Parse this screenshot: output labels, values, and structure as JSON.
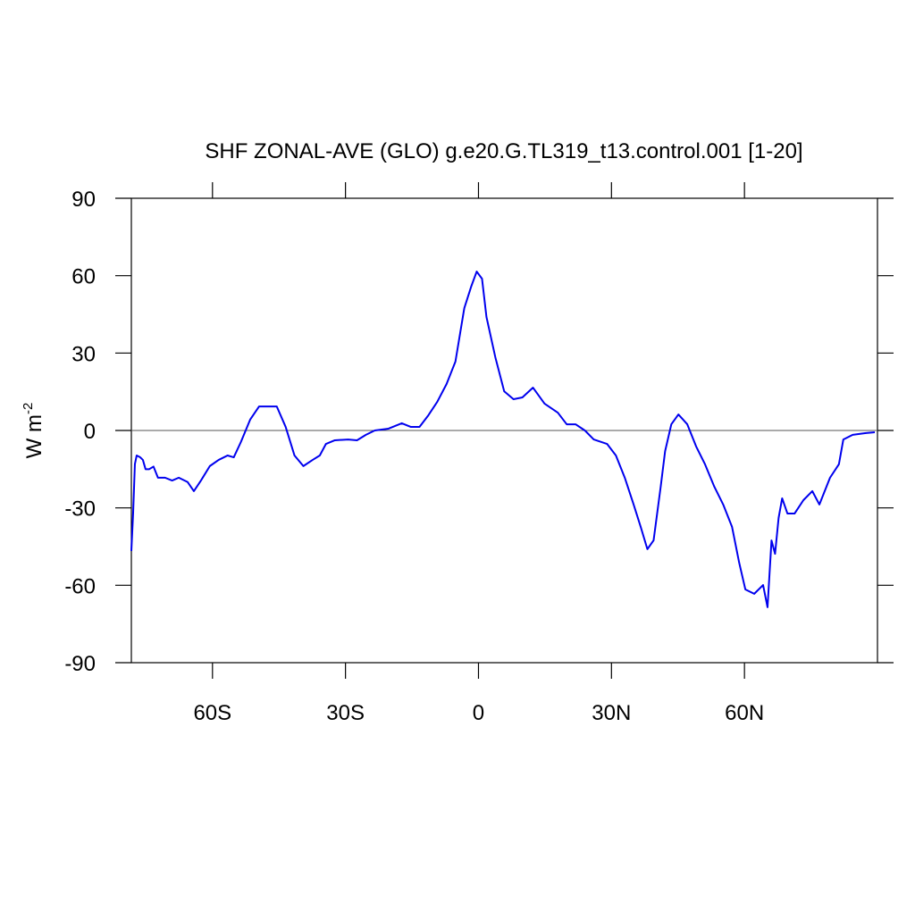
{
  "chart_data": {
    "type": "line",
    "title": "SHF ZONAL-AVE (GLO) g.e20.G.TL319_t13.control.001 [1-20]",
    "ylabel": "W m",
    "ylabel_sup": "-2",
    "xlim": [
      -78.3,
      90
    ],
    "ylim": [
      -90,
      90
    ],
    "xticks": [
      {
        "value": -60,
        "label": "60S"
      },
      {
        "value": -30,
        "label": "30S"
      },
      0,
      {
        "value": 30,
        "label": "30N"
      },
      {
        "value": 60,
        "label": "60N"
      }
    ],
    "yticks": [
      -90,
      -60,
      -30,
      0,
      30,
      60,
      90
    ],
    "zero_line": 0,
    "x": [
      -78.3,
      -77.9,
      -77.5,
      -77.1,
      -76.3,
      -75.7,
      -75.1,
      -74.3,
      -73.3,
      -72.3,
      -70.7,
      -69.1,
      -67.6,
      -65.6,
      -64.2,
      -62.6,
      -60.6,
      -58.6,
      -56.6,
      -55.2,
      -53.6,
      -51.5,
      -49.5,
      -47.5,
      -45.5,
      -43.5,
      -41.5,
      -39.5,
      -37.4,
      -35.8,
      -34.4,
      -32.4,
      -29.4,
      -27.4,
      -25.4,
      -23.4,
      -20.3,
      -17.3,
      -15.3,
      -13.3,
      -11.3,
      -9.3,
      -7.2,
      -5.2,
      -3.2,
      -1.6,
      -0.4,
      0.8,
      1.8,
      3.8,
      5.8,
      7.9,
      9.9,
      12.3,
      14.9,
      17.9,
      19.9,
      21.9,
      24,
      26,
      29,
      31,
      33,
      35,
      36.6,
      38.1,
      39.5,
      41.1,
      42.1,
      43.5,
      45.1,
      47.1,
      49.1,
      51.1,
      53.2,
      55.2,
      57.2,
      58.8,
      60.2,
      62.2,
      64.2,
      65.2,
      66.1,
      66.9,
      67.7,
      68.5,
      69.7,
      71.3,
      73.3,
      75.3,
      76.9,
      79.3,
      81.3,
      82.3,
      84.4,
      87.4,
      89.4
    ],
    "series": [
      {
        "name": "SHF",
        "color": "#0000ee",
        "values": [
          -46.7,
          -32,
          -13,
          -9.7,
          -10.4,
          -11.4,
          -15,
          -15,
          -14,
          -18.3,
          -18.3,
          -19.4,
          -18.3,
          -20,
          -23.5,
          -19.4,
          -13.8,
          -11.4,
          -9.7,
          -10.4,
          -4.5,
          4.2,
          9.3,
          9.3,
          9.3,
          1.4,
          -9.7,
          -13.8,
          -11.4,
          -9.7,
          -5.2,
          -3.8,
          -3.5,
          -3.8,
          -1.7,
          0,
          0.7,
          2.8,
          1.4,
          1.4,
          5.9,
          11.1,
          18,
          26.7,
          47.4,
          56,
          61.6,
          58.8,
          44,
          28.4,
          15.2,
          12.1,
          12.8,
          16.6,
          10.4,
          6.9,
          2.4,
          2.4,
          0,
          -3.5,
          -5.2,
          -9.7,
          -18.3,
          -28.7,
          -37.4,
          -46,
          -42.6,
          -21.8,
          -8,
          2.4,
          6.2,
          2.4,
          -6.2,
          -13.1,
          -21.8,
          -28.7,
          -37.4,
          -51.2,
          -61.6,
          -63.3,
          -59.9,
          -68.5,
          -42.6,
          -47.8,
          -33.9,
          -26.3,
          -32.2,
          -32.2,
          -27,
          -23.5,
          -28.7,
          -18.3,
          -13.1,
          -3.5,
          -1.7,
          -1,
          -0.7
        ]
      }
    ]
  }
}
